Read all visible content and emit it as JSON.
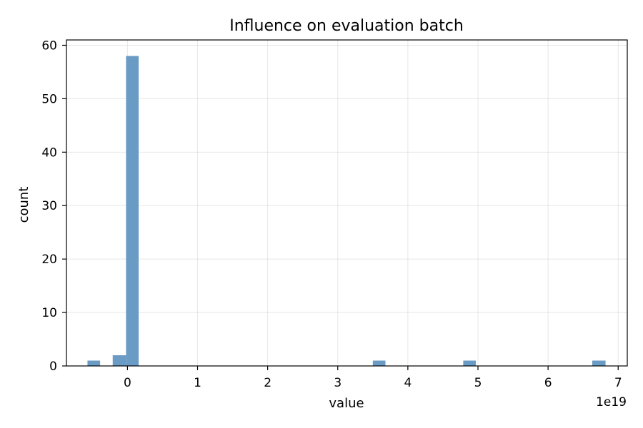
{
  "chart_data": {
    "type": "bar",
    "title": "Influence on evaluation batch",
    "xlabel": "value",
    "ylabel": "count",
    "x_scale_label": "1e19",
    "x_unit_multiplier": 1e+19,
    "xlim": [
      -0.87,
      7.13
    ],
    "ylim": [
      0,
      61
    ],
    "x_ticks": [
      0,
      1,
      2,
      3,
      4,
      5,
      6,
      7
    ],
    "x_tick_labels": [
      "0",
      "1",
      "2",
      "3",
      "4",
      "5",
      "6",
      "7"
    ],
    "y_ticks": [
      0,
      10,
      20,
      30,
      40,
      50,
      60
    ],
    "y_tick_labels": [
      "0",
      "10",
      "20",
      "30",
      "40",
      "50",
      "60"
    ],
    "grid": true,
    "bar_color": "#6a9bc4",
    "bins": [
      {
        "x0": -0.57,
        "x1": -0.39,
        "count": 1
      },
      {
        "x0": -0.21,
        "x1": -0.02,
        "count": 2
      },
      {
        "x0": -0.02,
        "x1": 0.16,
        "count": 58
      },
      {
        "x0": 3.5,
        "x1": 3.68,
        "count": 1
      },
      {
        "x0": 4.79,
        "x1": 4.97,
        "count": 1
      },
      {
        "x0": 6.63,
        "x1": 6.82,
        "count": 1
      }
    ]
  }
}
